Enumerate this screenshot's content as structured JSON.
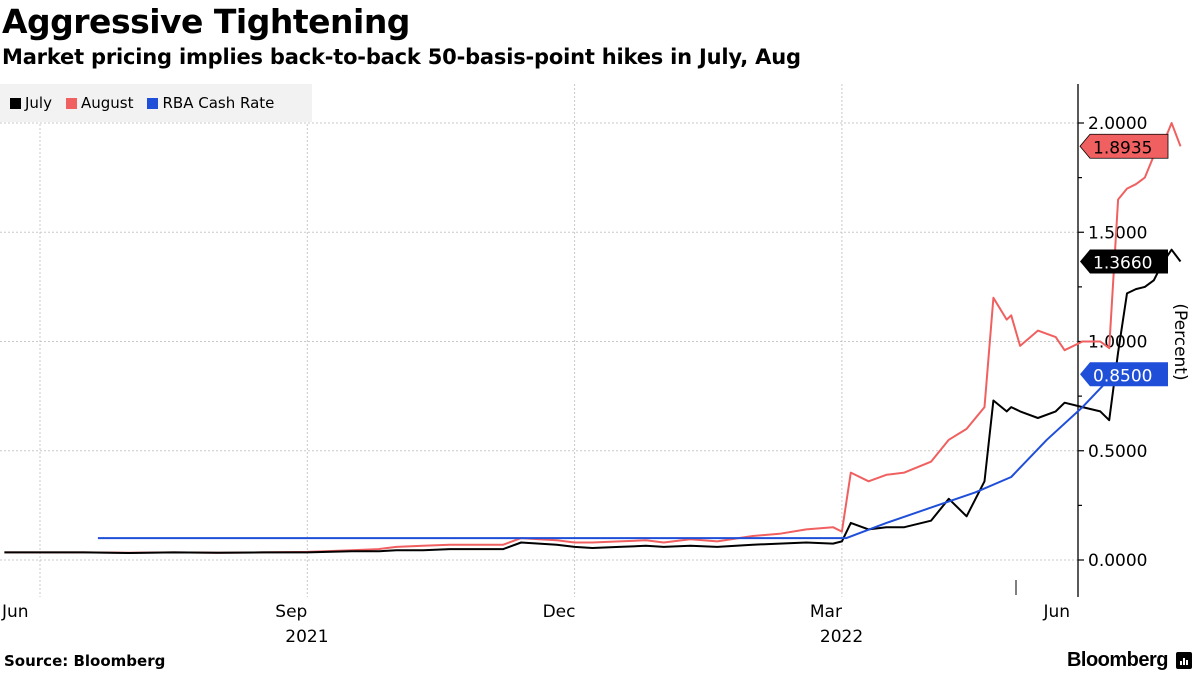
{
  "header": {
    "title": "Aggressive Tightening",
    "subtitle": "Market pricing implies back-to-back 50-basis-point hikes in July, Aug"
  },
  "footer": {
    "source": "Source: Bloomberg",
    "logo_text": "Bloomberg"
  },
  "chart_data": {
    "type": "line",
    "title": "Aggressive Tightening",
    "subtitle": "Market pricing implies back-to-back 50-basis-point hikes in July, Aug",
    "xlabel": "",
    "ylabel": "(Percent)",
    "ylim": [
      -0.15,
      2.2
    ],
    "yticks": [
      0.0,
      0.5,
      1.0,
      1.5,
      2.0
    ],
    "ytick_labels": [
      "0.0000",
      "0.5000",
      "1.0000",
      "1.5000",
      "2.0000"
    ],
    "xticks": [
      {
        "label": "Jun",
        "month_index": 0
      },
      {
        "label": "Sep",
        "month_index": 3
      },
      {
        "label": "Dec",
        "month_index": 6
      },
      {
        "label": "Mar",
        "month_index": 9
      },
      {
        "label": "Jun",
        "month_index": 12
      }
    ],
    "year_labels": [
      {
        "label": "2021",
        "month_index": 3
      },
      {
        "label": "2022",
        "month_index": 9
      }
    ],
    "grid": true,
    "legend_position": "top-left",
    "x_unit": "months since Jun 1 2021",
    "series": [
      {
        "name": "July",
        "color": "#000000",
        "last_value": "1.3660",
        "x": [
          -0.4,
          0.5,
          1.0,
          1.5,
          2.0,
          2.5,
          3.0,
          3.5,
          3.8,
          4.0,
          4.3,
          4.6,
          5.0,
          5.2,
          5.4,
          5.6,
          5.8,
          6.0,
          6.2,
          6.5,
          6.8,
          7.0,
          7.3,
          7.6,
          8.0,
          8.3,
          8.6,
          8.9,
          9.0,
          9.1,
          9.3,
          9.5,
          9.7,
          10.0,
          10.2,
          10.4,
          10.6,
          10.7,
          10.85,
          10.9,
          11.0,
          11.2,
          11.4,
          11.5,
          11.7,
          11.9,
          12.0,
          12.1,
          12.2,
          12.3,
          12.4,
          12.5,
          12.6,
          12.7,
          12.8
        ],
        "y": [
          0.035,
          0.035,
          0.032,
          0.035,
          0.033,
          0.035,
          0.035,
          0.04,
          0.04,
          0.045,
          0.045,
          0.05,
          0.05,
          0.05,
          0.08,
          0.075,
          0.07,
          0.06,
          0.055,
          0.06,
          0.065,
          0.06,
          0.065,
          0.06,
          0.07,
          0.075,
          0.08,
          0.075,
          0.085,
          0.17,
          0.14,
          0.15,
          0.15,
          0.18,
          0.28,
          0.2,
          0.36,
          0.73,
          0.68,
          0.7,
          0.68,
          0.65,
          0.68,
          0.72,
          0.7,
          0.68,
          0.64,
          0.95,
          1.22,
          1.24,
          1.25,
          1.28,
          1.36,
          1.42,
          1.366
        ]
      },
      {
        "name": "August",
        "color": "#f06060",
        "last_value": "1.8935",
        "x": [
          -0.4,
          0.5,
          1.0,
          1.5,
          2.0,
          2.5,
          3.0,
          3.5,
          3.8,
          4.0,
          4.3,
          4.6,
          5.0,
          5.2,
          5.4,
          5.6,
          5.8,
          6.0,
          6.2,
          6.5,
          6.8,
          7.0,
          7.3,
          7.6,
          8.0,
          8.3,
          8.6,
          8.9,
          9.0,
          9.1,
          9.3,
          9.5,
          9.7,
          10.0,
          10.2,
          10.4,
          10.6,
          10.7,
          10.85,
          10.9,
          11.0,
          11.2,
          11.4,
          11.5,
          11.7,
          11.9,
          12.0,
          12.1,
          12.2,
          12.3,
          12.4,
          12.5,
          12.6,
          12.7,
          12.8
        ],
        "y": [
          0.035,
          0.035,
          0.033,
          0.035,
          0.033,
          0.035,
          0.037,
          0.045,
          0.05,
          0.06,
          0.065,
          0.07,
          0.07,
          0.07,
          0.1,
          0.095,
          0.09,
          0.08,
          0.08,
          0.085,
          0.09,
          0.08,
          0.095,
          0.085,
          0.11,
          0.12,
          0.14,
          0.15,
          0.13,
          0.4,
          0.36,
          0.39,
          0.4,
          0.45,
          0.55,
          0.6,
          0.7,
          1.2,
          1.1,
          1.12,
          0.98,
          1.05,
          1.02,
          0.96,
          1.0,
          1.0,
          0.97,
          1.65,
          1.7,
          1.72,
          1.75,
          1.85,
          1.9,
          2.0,
          1.8935
        ]
      },
      {
        "name": "RBA Cash Rate",
        "color": "#1f4fd8",
        "last_value": "0.8500",
        "x": [
          0.65,
          9.05,
          9.5,
          10.0,
          10.5,
          10.9,
          11.3,
          11.7,
          12.05
        ],
        "y": [
          0.1,
          0.1,
          0.17,
          0.24,
          0.31,
          0.38,
          0.55,
          0.7,
          0.85
        ]
      }
    ]
  }
}
